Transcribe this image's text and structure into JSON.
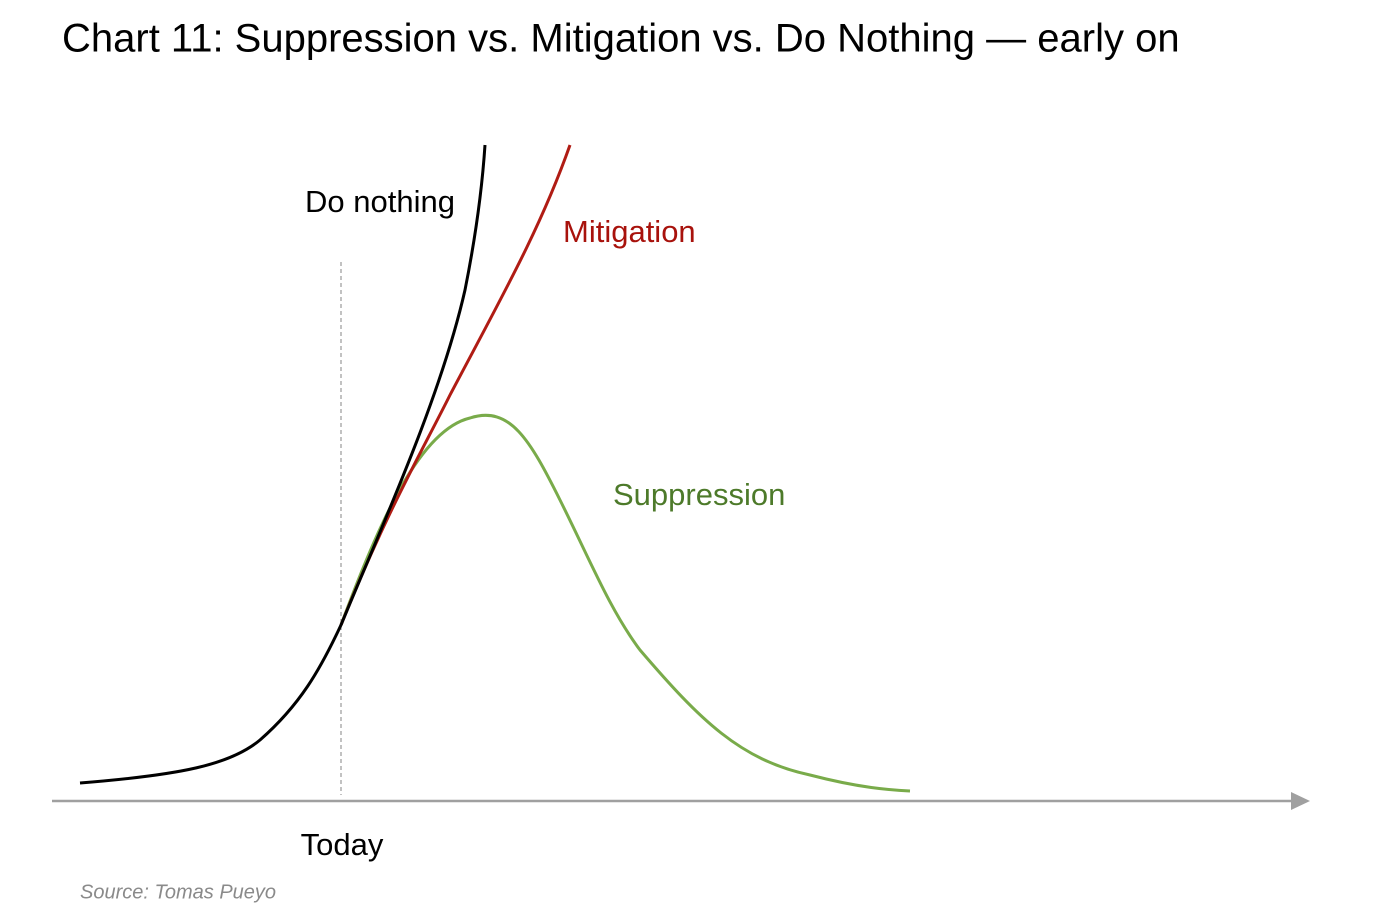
{
  "chart_data": {
    "type": "line",
    "title": "Chart 11: Suppression vs. Mitigation vs. Do Nothing — early on",
    "x_marker_label": "Today",
    "source": "Source: Tomas Pueyo",
    "series": [
      {
        "name": "Do nothing",
        "color": "#000000",
        "label_color": "#000000"
      },
      {
        "name": "Mitigation",
        "color": "#b01c14",
        "label_color": "#a8120c"
      },
      {
        "name": "Suppression",
        "color": "#79ab4a",
        "label_color": "#4d7a2a"
      }
    ]
  }
}
